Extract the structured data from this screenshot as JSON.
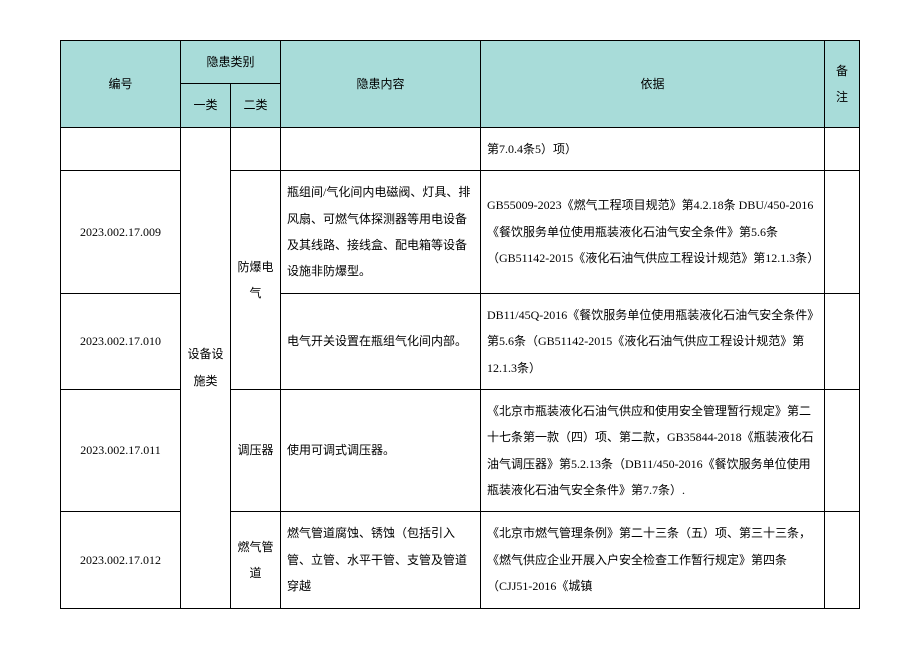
{
  "headers": {
    "id": "编号",
    "hazard_type": "隐患类别",
    "cat1": "一类",
    "cat2": "二类",
    "content": "隐患内容",
    "basis": "依据",
    "note": "备注"
  },
  "merged": {
    "cat1": "设备设施类",
    "cat2_explosion": "防爆电气",
    "cat2_regulator": "调压器",
    "cat2_pipeline": "燃气管道"
  },
  "rows": [
    {
      "id": "",
      "content": "",
      "basis": "第7.0.4条5）项）"
    },
    {
      "id": "2023.002.17.009",
      "content": "瓶组间/气化间内电磁阀、灯具、排风扇、可燃气体探测器等用电设备及其线路、接线盒、配电箱等设备设施非防爆型。",
      "basis": "GB55009-2023《燃气工程项目规范》第4.2.18条\nDBU/450-2016《餐饮服务单位使用瓶装液化石油气安全条件》第5.6条（GB51142-2015《液化石油气供应工程设计规范》第12.1.3条）"
    },
    {
      "id": "2023.002.17.010",
      "content": "电气开关设置在瓶组气化间内部。",
      "basis": "DB11/45Q-2016《餐饮服务单位使用瓶装液化石油气安全条件》第5.6条（GB51142-2015《液化石油气供应工程设计规范》第12.1.3条）"
    },
    {
      "id": "2023.002.17.011",
      "content": "使用可调式调压器。",
      "basis": "《北京市瓶装液化石油气供应和使用安全管理暂行规定》第二十七条第一款（四）项、第二款，GB35844-2018《瓶装液化石油气调压器》第5.2.13条（DB11/450-2016《餐饮服务单位使用瓶装液化石油气安全条件》第7.7条）."
    },
    {
      "id": "2023.002.17.012",
      "content": "燃气管道腐蚀、锈蚀（包括引入管、立管、水平干管、支管及管道穿越",
      "basis": "《北京市燃气管理条例》第二十三条（五）项、第三十三条，《燃气供应企业开展入户安全检查工作暂行规定》第四条（CJJ51-2016《城镇"
    }
  ],
  "style": {
    "header_bg": "#a8dcd9",
    "border_color": "#000000",
    "font_size": 12,
    "background": "#ffffff"
  }
}
